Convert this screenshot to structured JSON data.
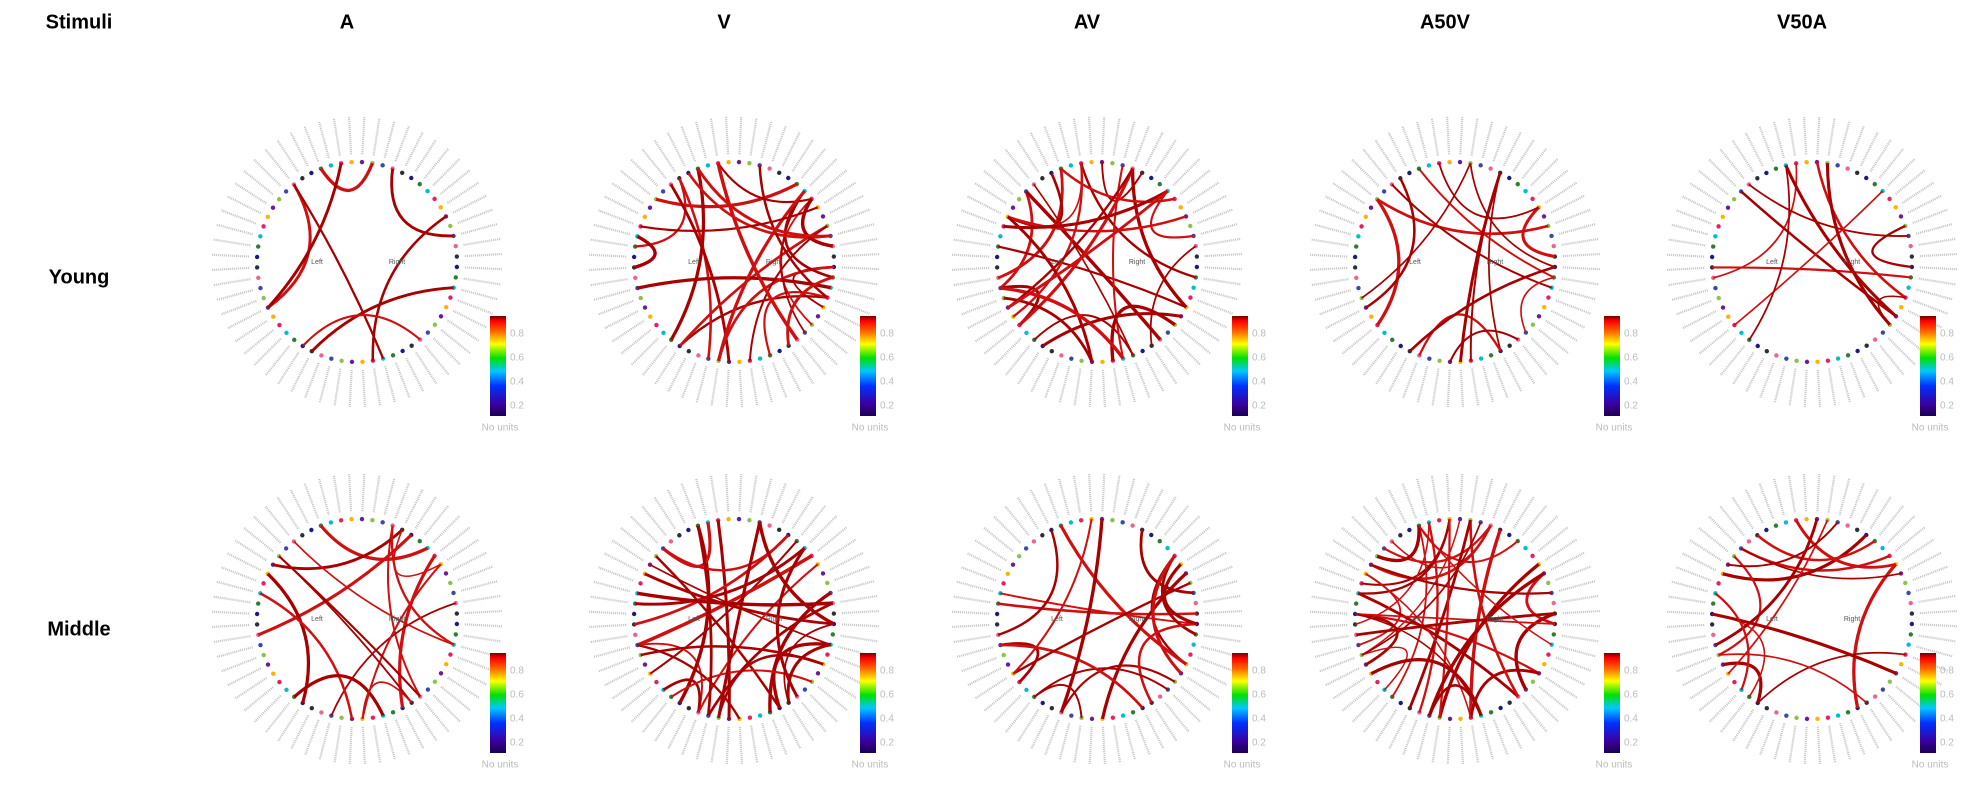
{
  "header": {
    "corner": "Stimuli",
    "columns": [
      "A",
      "V",
      "AV",
      "A50V",
      "V50A"
    ]
  },
  "rows": [
    {
      "label": "Young"
    },
    {
      "label": "Middle"
    }
  ],
  "hemispheres": {
    "left": "Left",
    "right": "Right"
  },
  "colorbar": {
    "ticks": [
      "0.2",
      "0.4",
      "0.6",
      "0.8"
    ],
    "caption": "No units"
  }
}
